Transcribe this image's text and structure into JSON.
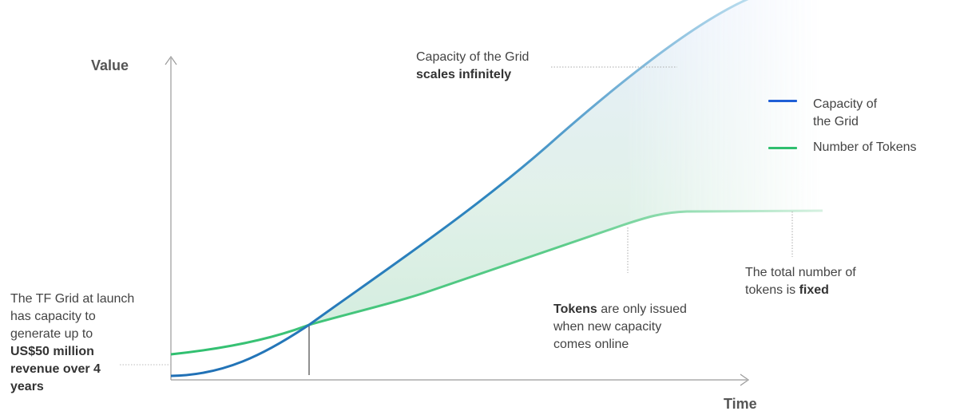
{
  "axes": {
    "y_label": "Value",
    "x_label": "Time"
  },
  "legend": [
    {
      "label_lines": [
        "Capacity of",
        "the Grid"
      ],
      "color": "#1f5fd6"
    },
    {
      "label_lines": [
        "Number of Tokens"
      ],
      "color": "#2fbf6f"
    }
  ],
  "annotations": {
    "capacity_line1": "Capacity of the Grid",
    "capacity_line2": "scales infinitely",
    "fixed_line1": "The total number of",
    "fixed_line2_prefix": "tokens is ",
    "fixed_line2_bold": "fixed",
    "tokens_bold": "Tokens",
    "tokens_rest": " are only issued",
    "tokens_line2": "when new capacity",
    "tokens_line3": "comes online",
    "launch_line1": "The TF Grid at launch",
    "launch_line2": "has capacity to",
    "launch_line3": "generate up to",
    "launch_bold1": "US$50 million",
    "launch_bold2": "revenue over 4",
    "launch_bold3": "years"
  },
  "colors": {
    "capacity_start": "#1f6fb5",
    "capacity_end": "#b7dcef",
    "tokens_start": "#2fbf6f",
    "tokens_end": "#bfe9d1",
    "axis": "#9a9a9a"
  }
}
